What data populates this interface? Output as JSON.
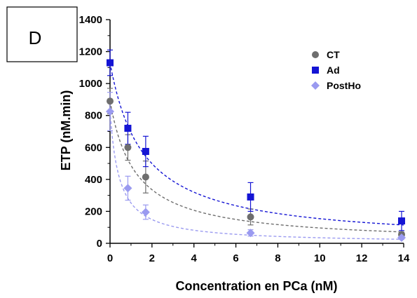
{
  "chart_data": {
    "type": "scatter",
    "panel_label": "D",
    "xlabel": "Concentration en PCa (nM)",
    "ylabel": "ETP (nM.min)",
    "xlim": [
      0,
      14
    ],
    "ylim": [
      0,
      1400
    ],
    "xticks": [
      0,
      2,
      4,
      6,
      8,
      10,
      12,
      14
    ],
    "yticks": [
      0,
      200,
      400,
      600,
      800,
      1000,
      1200,
      1400
    ],
    "grid": false,
    "legend_position": "top-right",
    "series": [
      {
        "name": "CT",
        "marker": "circle",
        "color": "#6e6e6e",
        "x": [
          0,
          0.85,
          1.7,
          6.7,
          13.9
        ],
        "y": [
          890,
          600,
          415,
          165,
          55
        ],
        "err": [
          80,
          80,
          100,
          50,
          15
        ],
        "fit": {
          "model": "hyperbolic",
          "y0": 890,
          "k": 1.21
        }
      },
      {
        "name": "Ad",
        "marker": "square",
        "color": "#1414d4",
        "x": [
          0,
          0.85,
          1.7,
          6.7,
          13.9
        ],
        "y": [
          1130,
          720,
          575,
          290,
          140
        ],
        "err": [
          80,
          100,
          95,
          90,
          60
        ],
        "fit": {
          "model": "hyperbolic",
          "y0": 1130,
          "k": 1.58
        }
      },
      {
        "name": "PostHo",
        "marker": "diamond",
        "color": "#9a9af0",
        "x": [
          0,
          0.85,
          1.7,
          6.7,
          13.9
        ],
        "y": [
          825,
          345,
          195,
          65,
          35
        ],
        "err": [
          120,
          75,
          45,
          20,
          10
        ],
        "fit": {
          "model": "hyperbolic",
          "y0": 825,
          "k": 0.44
        }
      }
    ]
  }
}
